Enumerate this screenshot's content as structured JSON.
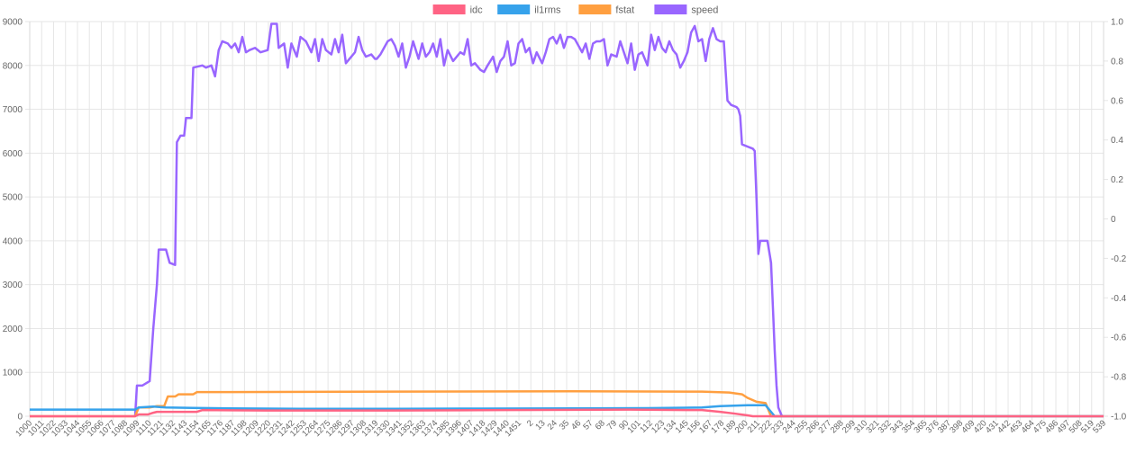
{
  "chart_data": {
    "type": "line",
    "title": "",
    "xlabel": "",
    "ylabel": "",
    "legend_position": "top",
    "grid": true,
    "ylim": [
      0,
      9000
    ],
    "y_ticks": [
      0,
      1000,
      2000,
      3000,
      4000,
      5000,
      6000,
      7000,
      8000,
      9000
    ],
    "y2lim": [
      -1.0,
      1.0
    ],
    "y2_ticks": [
      "-1.0",
      "-0.8",
      "-0.6",
      "-0.4",
      "-0.2",
      "0",
      "0.2",
      "0.4",
      "0.6",
      "0.8",
      "1.0"
    ],
    "x_tick_labels": [
      "1000",
      "1011",
      "1022",
      "1033",
      "1044",
      "1055",
      "1066",
      "1077",
      "1088",
      "1099",
      "1110",
      "1121",
      "1132",
      "1143",
      "1154",
      "1165",
      "1176",
      "1187",
      "1198",
      "1209",
      "1220",
      "1231",
      "1242",
      "1253",
      "1264",
      "1275",
      "1286",
      "1297",
      "1308",
      "1319",
      "1330",
      "1341",
      "1352",
      "1363",
      "1374",
      "1385",
      "1396",
      "1407",
      "1418",
      "1429",
      "1440",
      "1451",
      "2",
      "13",
      "24",
      "35",
      "46",
      "57",
      "68",
      "79",
      "90",
      "101",
      "112",
      "123",
      "134",
      "145",
      "156",
      "167",
      "178",
      "189",
      "200",
      "211",
      "222",
      "233",
      "244",
      "255",
      "266",
      "277",
      "288",
      "299",
      "310",
      "321",
      "332",
      "343",
      "354",
      "365",
      "376",
      "387",
      "398",
      "409",
      "420",
      "431",
      "442",
      "453",
      "464",
      "475",
      "486",
      "497",
      "508",
      "519",
      "539"
    ],
    "x_total_points": 591,
    "series": [
      {
        "name": "idc",
        "color": "#ff6384",
        "points": [
          [
            0,
            0
          ],
          [
            58,
            0
          ],
          [
            60,
            40
          ],
          [
            65,
            40
          ],
          [
            68,
            80
          ],
          [
            70,
            100
          ],
          [
            92,
            100
          ],
          [
            95,
            140
          ],
          [
            130,
            130
          ],
          [
            200,
            130
          ],
          [
            260,
            140
          ],
          [
            330,
            150
          ],
          [
            370,
            140
          ],
          [
            380,
            100
          ],
          [
            388,
            60
          ],
          [
            395,
            20
          ],
          [
            398,
            0
          ],
          [
            591,
            0
          ]
        ]
      },
      {
        "name": "il1rms",
        "color": "#36a2eb",
        "points": [
          [
            0,
            150
          ],
          [
            58,
            150
          ],
          [
            60,
            200
          ],
          [
            68,
            220
          ],
          [
            75,
            200
          ],
          [
            90,
            190
          ],
          [
            110,
            180
          ],
          [
            150,
            170
          ],
          [
            200,
            170
          ],
          [
            250,
            175
          ],
          [
            300,
            180
          ],
          [
            340,
            185
          ],
          [
            370,
            200
          ],
          [
            380,
            230
          ],
          [
            395,
            250
          ],
          [
            405,
            250
          ],
          [
            408,
            100
          ],
          [
            410,
            0
          ],
          [
            430,
            0
          ],
          [
            591,
            0
          ]
        ]
      },
      {
        "name": "fstat",
        "color": "#ff9f40",
        "points": [
          [
            0,
            0
          ],
          [
            58,
            0
          ],
          [
            60,
            200
          ],
          [
            66,
            200
          ],
          [
            70,
            230
          ],
          [
            74,
            230
          ],
          [
            76,
            450
          ],
          [
            80,
            450
          ],
          [
            82,
            500
          ],
          [
            90,
            500
          ],
          [
            92,
            550
          ],
          [
            200,
            560
          ],
          [
            300,
            570
          ],
          [
            370,
            560
          ],
          [
            385,
            540
          ],
          [
            392,
            500
          ],
          [
            395,
            420
          ],
          [
            400,
            330
          ],
          [
            405,
            300
          ],
          [
            408,
            0
          ],
          [
            591,
            0
          ]
        ]
      },
      {
        "name": "speed",
        "color": "#9966ff",
        "points": [
          [
            58,
            0
          ],
          [
            59,
            700
          ],
          [
            62,
            700
          ],
          [
            66,
            800
          ],
          [
            68,
            2000
          ],
          [
            70,
            3000
          ],
          [
            71,
            3800
          ],
          [
            75,
            3800
          ],
          [
            77,
            3500
          ],
          [
            80,
            3450
          ],
          [
            81,
            6250
          ],
          [
            83,
            6400
          ],
          [
            85,
            6400
          ],
          [
            86,
            6800
          ],
          [
            89,
            6800
          ],
          [
            90,
            7950
          ],
          [
            95,
            8000
          ],
          [
            97,
            7950
          ],
          [
            100,
            8000
          ],
          [
            102,
            7750
          ],
          [
            104,
            8350
          ],
          [
            106,
            8550
          ],
          [
            109,
            8500
          ],
          [
            111,
            8400
          ],
          [
            113,
            8500
          ],
          [
            115,
            8300
          ],
          [
            117,
            8650
          ],
          [
            119,
            8300
          ],
          [
            121,
            8350
          ],
          [
            124,
            8400
          ],
          [
            127,
            8300
          ],
          [
            131,
            8350
          ],
          [
            133,
            8950
          ],
          [
            136,
            8950
          ],
          [
            137,
            8400
          ],
          [
            140,
            8500
          ],
          [
            142,
            7950
          ],
          [
            144,
            8500
          ],
          [
            147,
            8200
          ],
          [
            149,
            8650
          ],
          [
            152,
            8550
          ],
          [
            155,
            8300
          ],
          [
            157,
            8600
          ],
          [
            159,
            8100
          ],
          [
            161,
            8600
          ],
          [
            163,
            8350
          ],
          [
            166,
            8250
          ],
          [
            168,
            8600
          ],
          [
            170,
            8300
          ],
          [
            172,
            8700
          ],
          [
            174,
            8050
          ],
          [
            177,
            8200
          ],
          [
            179,
            8300
          ],
          [
            181,
            8650
          ],
          [
            183,
            8350
          ],
          [
            185,
            8200
          ],
          [
            188,
            8250
          ],
          [
            190,
            8150
          ],
          [
            191,
            8150
          ],
          [
            193,
            8250
          ],
          [
            195,
            8400
          ],
          [
            197,
            8550
          ],
          [
            199,
            8600
          ],
          [
            201,
            8450
          ],
          [
            203,
            8200
          ],
          [
            205,
            8500
          ],
          [
            207,
            7950
          ],
          [
            209,
            8200
          ],
          [
            211,
            8550
          ],
          [
            214,
            8150
          ],
          [
            216,
            8500
          ],
          [
            218,
            8200
          ],
          [
            220,
            8300
          ],
          [
            222,
            8500
          ],
          [
            224,
            8200
          ],
          [
            226,
            8600
          ],
          [
            228,
            8000
          ],
          [
            230,
            8350
          ],
          [
            233,
            8100
          ],
          [
            235,
            8200
          ],
          [
            237,
            8300
          ],
          [
            239,
            8250
          ],
          [
            241,
            8600
          ],
          [
            243,
            8000
          ],
          [
            245,
            8050
          ],
          [
            248,
            7900
          ],
          [
            250,
            7850
          ],
          [
            252,
            8000
          ],
          [
            255,
            8200
          ],
          [
            257,
            7850
          ],
          [
            259,
            8100
          ],
          [
            261,
            8200
          ],
          [
            263,
            8550
          ],
          [
            265,
            8000
          ],
          [
            267,
            8050
          ],
          [
            269,
            8500
          ],
          [
            271,
            8600
          ],
          [
            273,
            8300
          ],
          [
            275,
            8400
          ],
          [
            277,
            8050
          ],
          [
            279,
            8300
          ],
          [
            282,
            8050
          ],
          [
            284,
            8300
          ],
          [
            286,
            8600
          ],
          [
            288,
            8650
          ],
          [
            290,
            8500
          ],
          [
            292,
            8700
          ],
          [
            294,
            8400
          ],
          [
            296,
            8650
          ],
          [
            298,
            8650
          ],
          [
            300,
            8600
          ],
          [
            302,
            8450
          ],
          [
            304,
            8300
          ],
          [
            306,
            8500
          ],
          [
            308,
            8150
          ],
          [
            310,
            8500
          ],
          [
            312,
            8550
          ],
          [
            314,
            8550
          ],
          [
            316,
            8600
          ],
          [
            318,
            8000
          ],
          [
            320,
            8250
          ],
          [
            323,
            8200
          ],
          [
            325,
            8550
          ],
          [
            327,
            8300
          ],
          [
            329,
            8050
          ],
          [
            331,
            8500
          ],
          [
            333,
            7900
          ],
          [
            335,
            8250
          ],
          [
            337,
            8300
          ],
          [
            340,
            8000
          ],
          [
            342,
            8700
          ],
          [
            344,
            8350
          ],
          [
            346,
            8650
          ],
          [
            348,
            8400
          ],
          [
            350,
            8300
          ],
          [
            352,
            8550
          ],
          [
            354,
            8350
          ],
          [
            356,
            8250
          ],
          [
            358,
            7950
          ],
          [
            360,
            8100
          ],
          [
            362,
            8300
          ],
          [
            364,
            8750
          ],
          [
            366,
            8900
          ],
          [
            368,
            8550
          ],
          [
            370,
            8600
          ],
          [
            372,
            8100
          ],
          [
            374,
            8600
          ],
          [
            376,
            8850
          ],
          [
            378,
            8600
          ],
          [
            380,
            8550
          ],
          [
            382,
            8550
          ],
          [
            384,
            7200
          ],
          [
            386,
            7100
          ],
          [
            389,
            7050
          ],
          [
            390,
            7000
          ],
          [
            391,
            6850
          ],
          [
            392,
            6200
          ],
          [
            395,
            6150
          ],
          [
            398,
            6100
          ],
          [
            399,
            6050
          ],
          [
            400,
            4950
          ],
          [
            401,
            3700
          ],
          [
            402,
            4000
          ],
          [
            406,
            4000
          ],
          [
            408,
            3500
          ],
          [
            409,
            2500
          ],
          [
            410,
            1500
          ],
          [
            411,
            700
          ],
          [
            412,
            200
          ],
          [
            414,
            0
          ]
        ]
      }
    ]
  }
}
